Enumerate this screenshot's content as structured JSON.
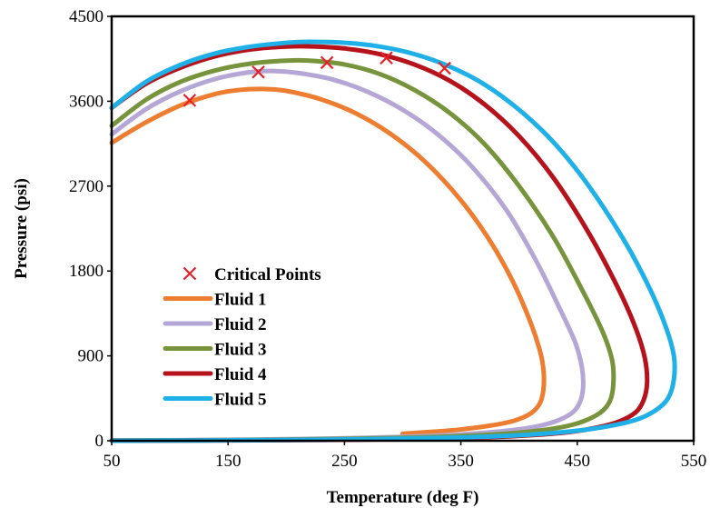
{
  "chart_data": {
    "type": "line",
    "title": "",
    "xlabel": "Temperature (deg F)",
    "ylabel": "Pressure (psi)",
    "xlim": [
      50,
      550
    ],
    "ylim": [
      0,
      4500
    ],
    "xticks": [
      50,
      150,
      250,
      350,
      450,
      550
    ],
    "xtick_labels": [
      "50",
      "150",
      "250",
      "350",
      "450",
      "550"
    ],
    "yticks": [
      0,
      900,
      1800,
      2700,
      3600,
      4500
    ],
    "ytick_labels": [
      "0",
      "900",
      "1800",
      "2700",
      "3600",
      "4500"
    ],
    "grid": false,
    "legend_position": "lower-left",
    "critical_points": {
      "name": "Critical Points",
      "color": "#e8202a",
      "marker": "x",
      "points": [
        [
          117,
          3610
        ],
        [
          176,
          3910
        ],
        [
          235,
          4010
        ],
        [
          286,
          4060
        ],
        [
          336,
          3950
        ]
      ]
    },
    "series": [
      {
        "name": "Fluid 1",
        "color": "#ed7d31",
        "x": [
          50,
          80,
          110,
          140,
          160,
          180,
          200,
          230,
          260,
          290,
          320,
          350,
          375,
          395,
          410,
          418,
          421,
          421,
          418,
          410,
          395,
          375,
          350,
          320,
          300
        ],
        "y": [
          3160,
          3380,
          3560,
          3680,
          3720,
          3730,
          3710,
          3620,
          3470,
          3250,
          2950,
          2550,
          2120,
          1680,
          1250,
          950,
          750,
          550,
          400,
          290,
          210,
          160,
          120,
          90,
          75
        ]
      },
      {
        "name": "Fluid 2",
        "color": "#b4a7d6",
        "x": [
          50,
          80,
          110,
          140,
          170,
          190,
          210,
          240,
          270,
          300,
          330,
          360,
          390,
          415,
          435,
          448,
          454,
          455,
          452,
          445,
          430,
          410,
          380,
          340,
          290,
          230,
          170,
          110,
          50
        ],
        "y": [
          3250,
          3520,
          3710,
          3840,
          3910,
          3920,
          3900,
          3830,
          3700,
          3510,
          3250,
          2900,
          2430,
          1900,
          1400,
          1050,
          780,
          560,
          400,
          290,
          200,
          140,
          95,
          60,
          38,
          22,
          12,
          6,
          3
        ]
      },
      {
        "name": "Fluid 3",
        "color": "#77933c",
        "x": [
          50,
          80,
          110,
          140,
          170,
          200,
          220,
          250,
          280,
          310,
          340,
          370,
          400,
          430,
          455,
          472,
          480,
          481,
          478,
          470,
          455,
          435,
          405,
          365,
          310,
          250,
          190,
          130,
          50
        ],
        "y": [
          3340,
          3620,
          3810,
          3930,
          4000,
          4030,
          4030,
          3990,
          3890,
          3720,
          3480,
          3150,
          2700,
          2150,
          1580,
          1150,
          850,
          600,
          420,
          300,
          205,
          140,
          92,
          58,
          34,
          20,
          11,
          6,
          2
        ]
      },
      {
        "name": "Fluid 4",
        "color": "#b5121b",
        "x": [
          50,
          80,
          110,
          140,
          170,
          200,
          225,
          250,
          280,
          310,
          340,
          370,
          400,
          430,
          460,
          485,
          500,
          508,
          510,
          507,
          500,
          485,
          465,
          440,
          405,
          360,
          300,
          230,
          150,
          50
        ],
        "y": [
          3530,
          3790,
          3960,
          4080,
          4150,
          4180,
          4180,
          4160,
          4100,
          3990,
          3820,
          3570,
          3230,
          2780,
          2200,
          1620,
          1200,
          880,
          620,
          430,
          300,
          200,
          135,
          88,
          55,
          32,
          17,
          9,
          4,
          1
        ]
      },
      {
        "name": "Fluid 5",
        "color": "#1fb0e8",
        "x": [
          50,
          80,
          110,
          140,
          170,
          200,
          220,
          250,
          280,
          310,
          340,
          370,
          400,
          430,
          460,
          490,
          512,
          526,
          533,
          533,
          528,
          517,
          500,
          475,
          445,
          405,
          350,
          280,
          200,
          120,
          50
        ],
        "y": [
          3530,
          3810,
          3990,
          4110,
          4180,
          4220,
          4230,
          4220,
          4180,
          4100,
          3970,
          3780,
          3510,
          3160,
          2700,
          2130,
          1620,
          1210,
          900,
          650,
          450,
          320,
          220,
          150,
          100,
          62,
          35,
          18,
          8,
          3,
          0
        ]
      }
    ]
  }
}
